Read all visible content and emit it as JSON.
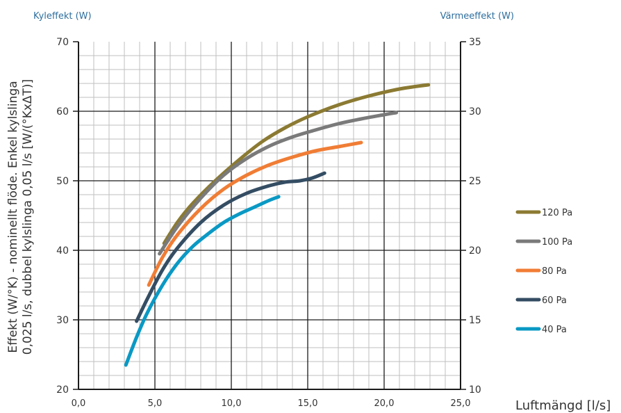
{
  "header": {
    "left_axis_title": "Kyleffekt (W)",
    "right_axis_title": "Värmeeffekt (W)"
  },
  "chart_data": {
    "type": "line",
    "ylabel_line1": "Effekt (W/°K) - nominellt flöde. Enkel kylslinga",
    "ylabel_line2": "0,025 l/s, dubbel kylslinga 0,05 l/s [W/(°KxΔT)]",
    "xlabel": "Luftmängd [l/s]",
    "xlim": [
      0,
      25
    ],
    "ylim": [
      20,
      70
    ],
    "ylim_right": [
      10,
      35
    ],
    "x_ticks": [
      "0,0",
      "5,0",
      "10,0",
      "15,0",
      "20,0",
      "25,0"
    ],
    "y_ticks_left": [
      "20",
      "30",
      "40",
      "50",
      "60",
      "70"
    ],
    "y_ticks_right": [
      "10",
      "15",
      "20",
      "25",
      "30",
      "35"
    ],
    "grid": true,
    "legend_position": "right",
    "series": [
      {
        "name": "120 Pa",
        "color": "#8b7a32",
        "points": [
          [
            5.6,
            41.0
          ],
          [
            6.5,
            44.1
          ],
          [
            7.5,
            46.8
          ],
          [
            9.0,
            50.1
          ],
          [
            10.5,
            53.0
          ],
          [
            12.0,
            55.6
          ],
          [
            13.5,
            57.6
          ],
          [
            15.0,
            59.2
          ],
          [
            17.0,
            60.9
          ],
          [
            19.0,
            62.2
          ],
          [
            21.0,
            63.2
          ],
          [
            22.9,
            63.8
          ]
        ]
      },
      {
        "name": "100 Pa",
        "color": "#7a7a7a",
        "points": [
          [
            5.3,
            39.5
          ],
          [
            6.5,
            43.5
          ],
          [
            8.0,
            47.5
          ],
          [
            9.5,
            50.8
          ],
          [
            11.0,
            53.2
          ],
          [
            12.5,
            55.0
          ],
          [
            14.0,
            56.3
          ],
          [
            15.5,
            57.3
          ],
          [
            17.0,
            58.2
          ],
          [
            18.5,
            58.9
          ],
          [
            20.0,
            59.5
          ],
          [
            20.8,
            59.8
          ]
        ]
      },
      {
        "name": "80 Pa",
        "color": "#f07d35",
        "points": [
          [
            4.6,
            35.0
          ],
          [
            5.5,
            39.0
          ],
          [
            6.5,
            42.3
          ],
          [
            8.0,
            46.0
          ],
          [
            9.5,
            48.8
          ],
          [
            11.0,
            50.8
          ],
          [
            12.5,
            52.3
          ],
          [
            14.0,
            53.4
          ],
          [
            15.5,
            54.3
          ],
          [
            17.0,
            54.9
          ],
          [
            18.5,
            55.5
          ]
        ]
      },
      {
        "name": "60 Pa",
        "color": "#344d63",
        "points": [
          [
            3.8,
            29.8
          ],
          [
            4.5,
            33.0
          ],
          [
            5.5,
            37.2
          ],
          [
            6.5,
            40.4
          ],
          [
            8.0,
            44.0
          ],
          [
            9.5,
            46.5
          ],
          [
            11.0,
            48.2
          ],
          [
            12.5,
            49.3
          ],
          [
            13.5,
            49.8
          ],
          [
            14.5,
            50.0
          ],
          [
            15.3,
            50.4
          ],
          [
            16.1,
            51.1
          ]
        ]
      },
      {
        "name": "40 Pa",
        "color": "#0a99c4",
        "points": [
          [
            3.1,
            23.5
          ],
          [
            3.8,
            27.5
          ],
          [
            4.5,
            31.0
          ],
          [
            5.5,
            35.0
          ],
          [
            6.5,
            38.2
          ],
          [
            7.5,
            40.6
          ],
          [
            8.5,
            42.4
          ],
          [
            9.5,
            44.0
          ],
          [
            10.5,
            45.2
          ],
          [
            11.5,
            46.2
          ],
          [
            12.5,
            47.2
          ],
          [
            13.1,
            47.7
          ]
        ]
      }
    ]
  }
}
